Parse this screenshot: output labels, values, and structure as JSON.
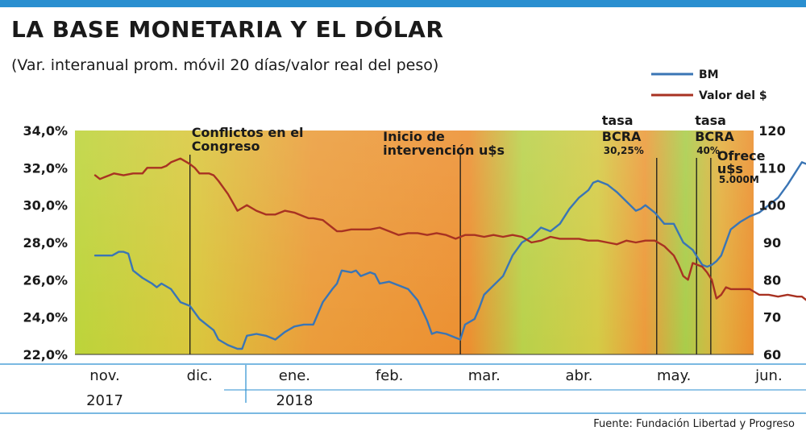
{
  "header": {
    "title": "LA BASE MONETARIA Y EL DÓLAR",
    "subtitle": "(Var. interanual prom. móvil 20 días/valor real del peso)",
    "source": "Fuente: Fundación Libertad y Progreso"
  },
  "colors": {
    "bm": "#3a75b5",
    "valor": "#a83222",
    "accent_bar": "#2a8fd0",
    "grad_green": "#bcd43a",
    "grad_orange": "#eb8f2e",
    "event_line": "#1a1a1a"
  },
  "chart_data": {
    "type": "line",
    "title": "LA BASE MONETARIA Y EL DÓLAR",
    "subtitle": "(Var. interanual prom. móvil 20 días/valor real del peso)",
    "xlabel": "",
    "ylabel": "",
    "x_domain": [
      0,
      7
    ],
    "y_left": {
      "lim": [
        22,
        34
      ],
      "ticks": [
        22,
        24,
        26,
        28,
        30,
        32,
        34
      ],
      "tick_labels": [
        "22,0%",
        "24,0%",
        "26,0%",
        "28,0%",
        "30,0%",
        "32,0%",
        "34,0%"
      ]
    },
    "y_right": {
      "lim": [
        60,
        120
      ],
      "ticks": [
        60,
        70,
        80,
        90,
        100,
        110,
        120
      ],
      "tick_labels": [
        "60",
        "70",
        "80",
        "90",
        "100",
        "110",
        "120"
      ]
    },
    "x_ticks": [
      {
        "x": 0.0,
        "label": "nov."
      },
      {
        "x": 1.0,
        "label": "dic."
      },
      {
        "x": 2.0,
        "label": "ene."
      },
      {
        "x": 3.0,
        "label": "feb."
      },
      {
        "x": 4.0,
        "label": "mar."
      },
      {
        "x": 5.0,
        "label": "abr."
      },
      {
        "x": 6.0,
        "label": "may."
      },
      {
        "x": 7.0,
        "label": "jun."
      }
    ],
    "year_labels": [
      {
        "x": 0.0,
        "label": "2017"
      },
      {
        "x": 2.0,
        "label": "2018"
      }
    ],
    "legend": {
      "position": "top-right",
      "entries": [
        "BM",
        "Valor del $"
      ]
    },
    "grid": false,
    "series": [
      {
        "name": "BM",
        "axis": "left",
        "color": "#3a75b5",
        "points": [
          [
            0.0,
            27.3
          ],
          [
            0.1,
            27.3
          ],
          [
            0.18,
            27.3
          ],
          [
            0.25,
            27.5
          ],
          [
            0.3,
            27.5
          ],
          [
            0.35,
            27.4
          ],
          [
            0.4,
            26.5
          ],
          [
            0.5,
            26.1
          ],
          [
            0.6,
            25.8
          ],
          [
            0.65,
            25.6
          ],
          [
            0.7,
            25.8
          ],
          [
            0.8,
            25.5
          ],
          [
            0.9,
            24.8
          ],
          [
            1.0,
            24.6
          ],
          [
            1.1,
            23.9
          ],
          [
            1.2,
            23.5
          ],
          [
            1.25,
            23.3
          ],
          [
            1.3,
            22.8
          ],
          [
            1.4,
            22.5
          ],
          [
            1.5,
            22.3
          ],
          [
            1.55,
            22.3
          ],
          [
            1.6,
            23.0
          ],
          [
            1.7,
            23.1
          ],
          [
            1.8,
            23.0
          ],
          [
            1.9,
            22.8
          ],
          [
            2.0,
            23.2
          ],
          [
            2.1,
            23.5
          ],
          [
            2.2,
            23.6
          ],
          [
            2.3,
            23.6
          ],
          [
            2.4,
            24.8
          ],
          [
            2.5,
            25.5
          ],
          [
            2.55,
            25.8
          ],
          [
            2.6,
            26.5
          ],
          [
            2.7,
            26.4
          ],
          [
            2.75,
            26.5
          ],
          [
            2.8,
            26.2
          ],
          [
            2.9,
            26.4
          ],
          [
            2.95,
            26.3
          ],
          [
            3.0,
            25.8
          ],
          [
            3.1,
            25.9
          ],
          [
            3.2,
            25.7
          ],
          [
            3.3,
            25.5
          ],
          [
            3.4,
            24.9
          ],
          [
            3.5,
            23.8
          ],
          [
            3.55,
            23.1
          ],
          [
            3.6,
            23.2
          ],
          [
            3.7,
            23.1
          ],
          [
            3.8,
            22.9
          ],
          [
            3.85,
            22.8
          ],
          [
            3.9,
            23.6
          ],
          [
            4.0,
            23.9
          ],
          [
            4.05,
            24.5
          ],
          [
            4.1,
            25.2
          ],
          [
            4.2,
            25.7
          ],
          [
            4.3,
            26.2
          ],
          [
            4.4,
            27.3
          ],
          [
            4.5,
            28.0
          ],
          [
            4.6,
            28.3
          ],
          [
            4.7,
            28.8
          ],
          [
            4.8,
            28.6
          ],
          [
            4.9,
            29.0
          ],
          [
            5.0,
            29.8
          ],
          [
            5.1,
            30.4
          ],
          [
            5.2,
            30.8
          ],
          [
            5.25,
            31.2
          ],
          [
            5.3,
            31.3
          ],
          [
            5.4,
            31.1
          ],
          [
            5.5,
            30.7
          ],
          [
            5.6,
            30.2
          ],
          [
            5.7,
            29.7
          ],
          [
            5.75,
            29.8
          ],
          [
            5.8,
            30.0
          ],
          [
            5.9,
            29.6
          ],
          [
            6.0,
            29.0
          ],
          [
            6.1,
            29.0
          ],
          [
            6.2,
            28.0
          ],
          [
            6.3,
            27.6
          ],
          [
            6.4,
            26.8
          ],
          [
            6.45,
            26.7
          ],
          [
            6.5,
            26.8
          ],
          [
            6.55,
            27.0
          ],
          [
            6.6,
            27.3
          ],
          [
            6.7,
            28.7
          ],
          [
            6.8,
            29.1
          ],
          [
            6.9,
            29.4
          ],
          [
            7.0,
            29.6
          ],
          [
            7.1,
            30.0
          ],
          [
            7.2,
            30.4
          ],
          [
            7.3,
            31.1
          ],
          [
            7.4,
            31.9
          ],
          [
            7.45,
            32.3
          ],
          [
            7.5,
            32.2
          ]
        ]
      },
      {
        "name": "Valor del $",
        "axis": "right",
        "color": "#a83222",
        "points": [
          [
            0.0,
            108
          ],
          [
            0.05,
            107
          ],
          [
            0.1,
            107.5
          ],
          [
            0.15,
            108
          ],
          [
            0.2,
            108.5
          ],
          [
            0.3,
            108
          ],
          [
            0.4,
            108.5
          ],
          [
            0.5,
            108.5
          ],
          [
            0.55,
            110
          ],
          [
            0.6,
            110
          ],
          [
            0.7,
            110
          ],
          [
            0.75,
            110.5
          ],
          [
            0.8,
            111.5
          ],
          [
            0.9,
            112.5
          ],
          [
            1.0,
            111
          ],
          [
            1.05,
            110
          ],
          [
            1.1,
            108.5
          ],
          [
            1.2,
            108.5
          ],
          [
            1.25,
            108
          ],
          [
            1.3,
            106.5
          ],
          [
            1.4,
            103
          ],
          [
            1.5,
            98.5
          ],
          [
            1.6,
            100
          ],
          [
            1.7,
            98.5
          ],
          [
            1.8,
            97.5
          ],
          [
            1.9,
            97.5
          ],
          [
            2.0,
            98.5
          ],
          [
            2.1,
            98
          ],
          [
            2.2,
            97
          ],
          [
            2.25,
            96.5
          ],
          [
            2.3,
            96.5
          ],
          [
            2.4,
            96
          ],
          [
            2.5,
            94
          ],
          [
            2.55,
            93
          ],
          [
            2.6,
            93
          ],
          [
            2.7,
            93.5
          ],
          [
            2.8,
            93.5
          ],
          [
            2.9,
            93.5
          ],
          [
            3.0,
            94
          ],
          [
            3.1,
            93
          ],
          [
            3.2,
            92
          ],
          [
            3.3,
            92.5
          ],
          [
            3.4,
            92.5
          ],
          [
            3.5,
            92
          ],
          [
            3.6,
            92.5
          ],
          [
            3.7,
            92
          ],
          [
            3.8,
            91
          ],
          [
            3.9,
            92
          ],
          [
            4.0,
            92
          ],
          [
            4.1,
            91.5
          ],
          [
            4.2,
            92
          ],
          [
            4.3,
            91.5
          ],
          [
            4.4,
            92
          ],
          [
            4.5,
            91.5
          ],
          [
            4.6,
            90
          ],
          [
            4.7,
            90.5
          ],
          [
            4.8,
            91.5
          ],
          [
            4.9,
            91
          ],
          [
            5.0,
            91
          ],
          [
            5.1,
            91
          ],
          [
            5.2,
            90.5
          ],
          [
            5.3,
            90.5
          ],
          [
            5.4,
            90
          ],
          [
            5.5,
            89.5
          ],
          [
            5.6,
            90.5
          ],
          [
            5.7,
            90
          ],
          [
            5.8,
            90.5
          ],
          [
            5.9,
            90.5
          ],
          [
            6.0,
            89
          ],
          [
            6.1,
            86.5
          ],
          [
            6.15,
            84
          ],
          [
            6.2,
            81
          ],
          [
            6.25,
            80
          ],
          [
            6.3,
            84.5
          ],
          [
            6.4,
            83.5
          ],
          [
            6.45,
            82
          ],
          [
            6.5,
            80
          ],
          [
            6.55,
            75
          ],
          [
            6.6,
            76
          ],
          [
            6.65,
            78
          ],
          [
            6.7,
            77.5
          ],
          [
            6.8,
            77.5
          ],
          [
            6.9,
            77.5
          ],
          [
            7.0,
            76
          ],
          [
            7.1,
            76
          ],
          [
            7.2,
            75.5
          ],
          [
            7.3,
            76
          ],
          [
            7.4,
            75.5
          ],
          [
            7.45,
            75.5
          ],
          [
            7.5,
            74.5
          ]
        ]
      }
    ],
    "annotations": [
      {
        "x": 1.0,
        "lines": [
          "Conflictos en el",
          "Congreso"
        ],
        "small": ""
      },
      {
        "x": 3.85,
        "lines": [
          "Inicio de",
          "intervención u$s"
        ],
        "small": ""
      },
      {
        "x": 5.92,
        "lines": [
          "tasa",
          "BCRA"
        ],
        "small": "30,25%"
      },
      {
        "x": 6.34,
        "lines": [
          "tasa",
          "BCRA"
        ],
        "small": "40%"
      },
      {
        "x": 6.49,
        "lines": [
          "Ofrece",
          "u$s"
        ],
        "small": "5.000M"
      }
    ]
  }
}
